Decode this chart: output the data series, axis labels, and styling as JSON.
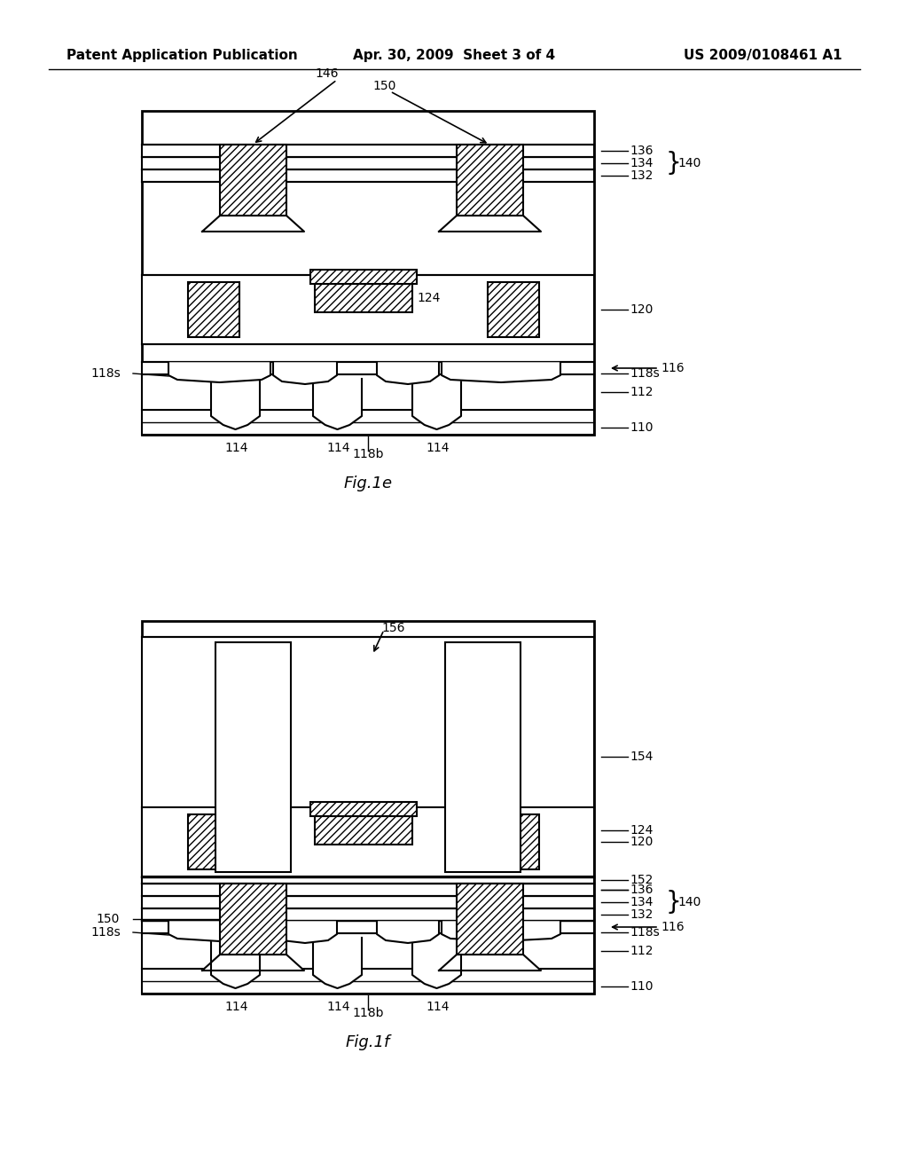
{
  "background_color": "#ffffff",
  "header_left": "Patent Application Publication",
  "header_center": "Apr. 30, 2009  Sheet 3 of 4",
  "header_right": "US 2009/0108461 A1",
  "fig1e_label": "Fig.1e",
  "fig1f_label": "Fig.1f",
  "hatch_pattern": "////",
  "line_color": "#000000",
  "fill_color": "#ffffff",
  "hatch_color": "#000000"
}
